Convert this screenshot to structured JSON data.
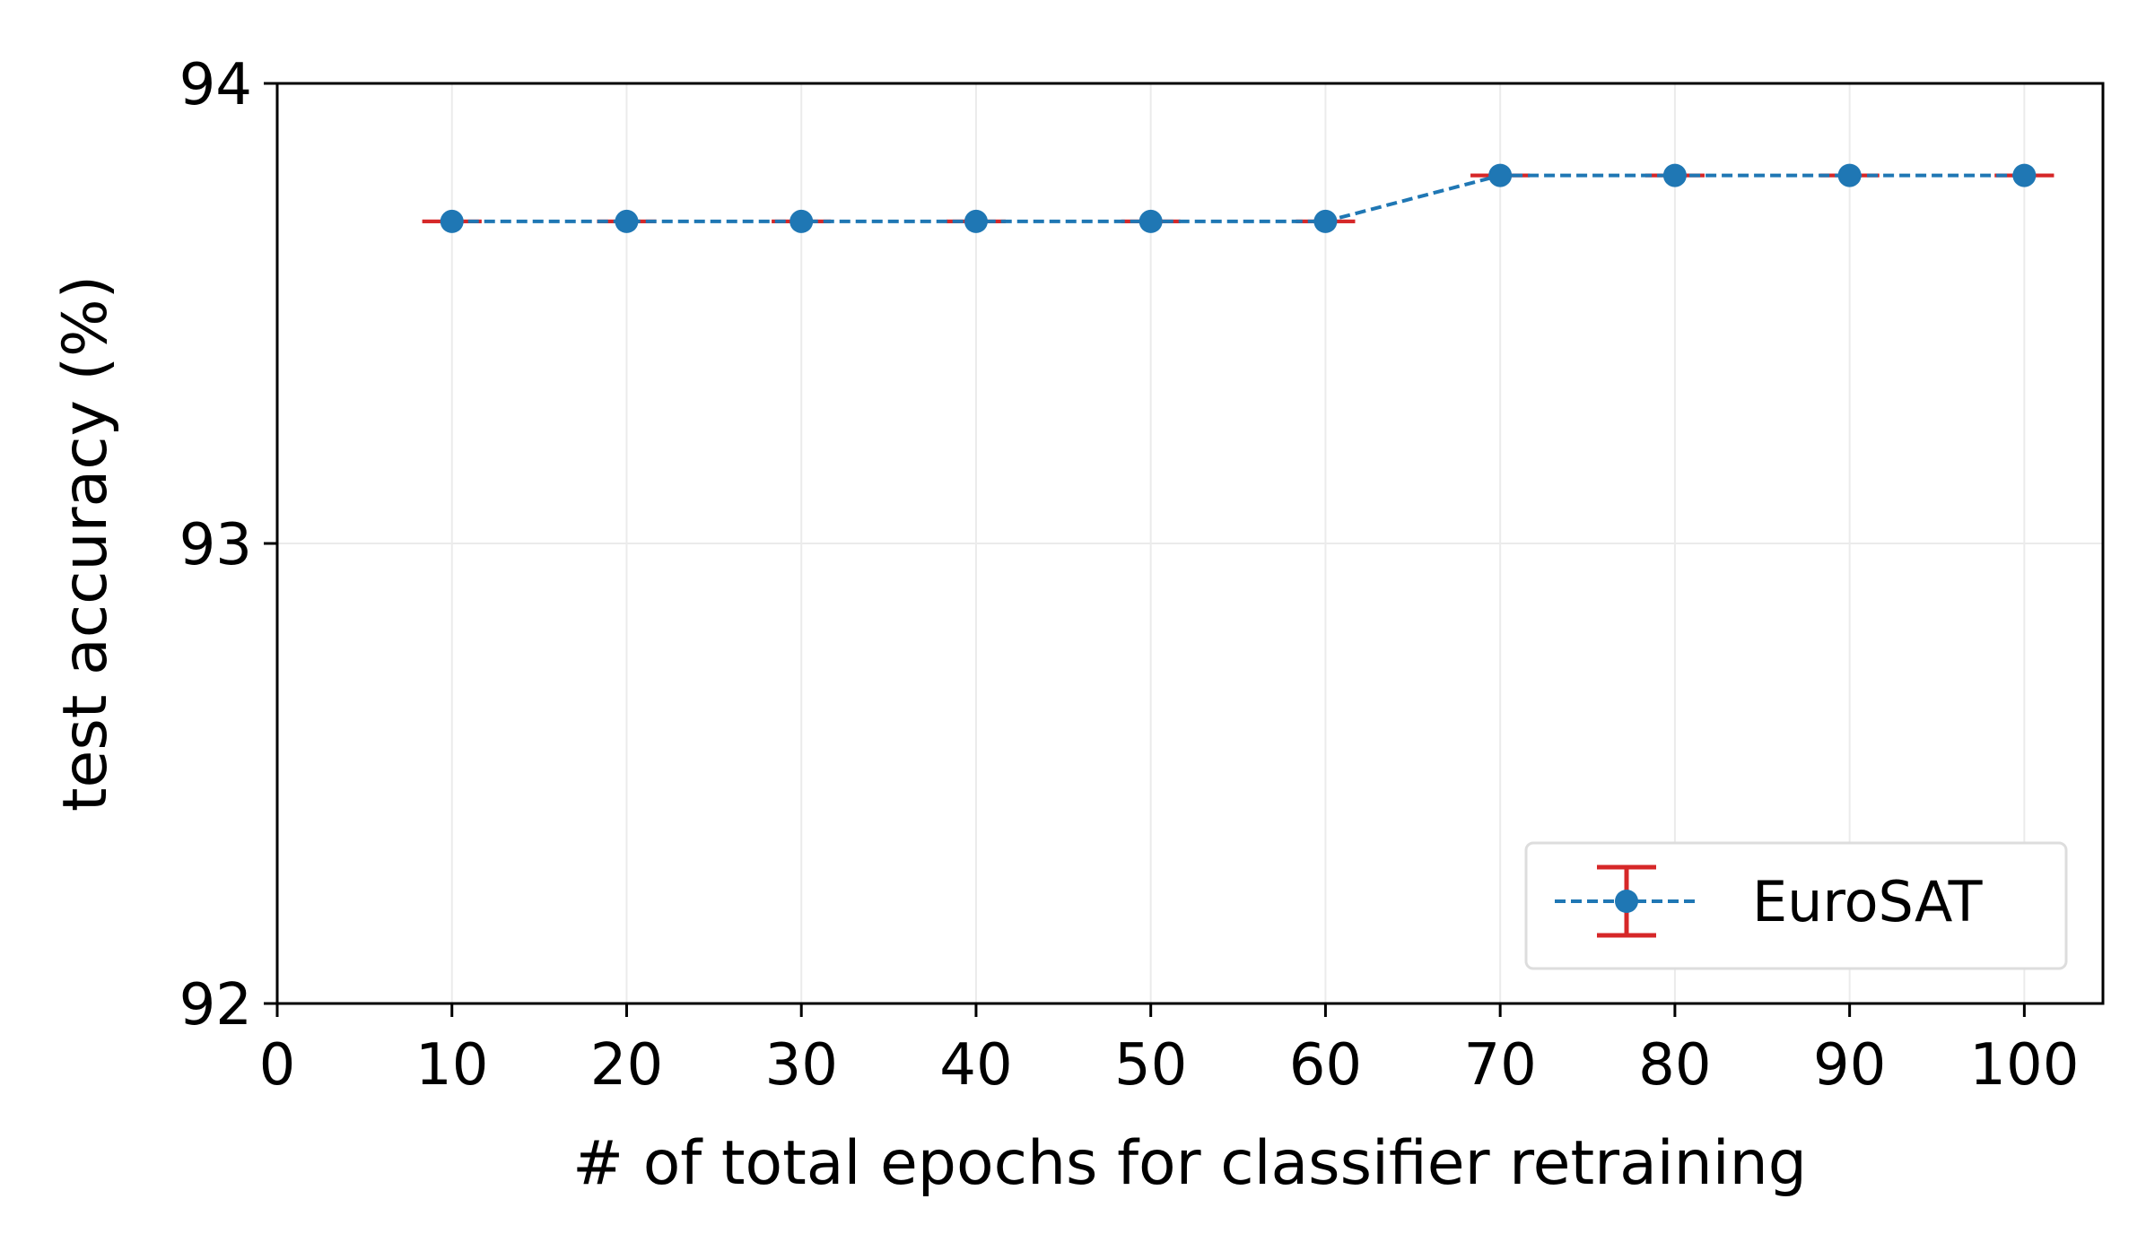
{
  "chart_data": {
    "type": "line",
    "xlabel": "# of total epochs for classifier retraining",
    "ylabel": "test accuracy (%)",
    "xlim": [
      0,
      104.5
    ],
    "ylim": [
      92,
      94
    ],
    "xticks": [
      0,
      10,
      20,
      30,
      40,
      50,
      60,
      70,
      80,
      90,
      100
    ],
    "yticks": [
      92,
      93,
      94
    ],
    "grid": true,
    "legend_position": "bottom-right",
    "series": [
      {
        "name": "EuroSAT",
        "x": [
          10,
          20,
          30,
          40,
          50,
          60,
          70,
          80,
          90,
          100
        ],
        "y": [
          93.7,
          93.7,
          93.7,
          93.7,
          93.7,
          93.7,
          93.8,
          93.8,
          93.8,
          93.8
        ],
        "yerr": [
          0,
          0,
          0,
          0,
          0,
          0,
          0,
          0,
          0,
          0
        ],
        "line_color": "#1f77b4",
        "line_style": "dashed",
        "marker": "circle",
        "errorbar_color": "#d62728"
      }
    ]
  }
}
